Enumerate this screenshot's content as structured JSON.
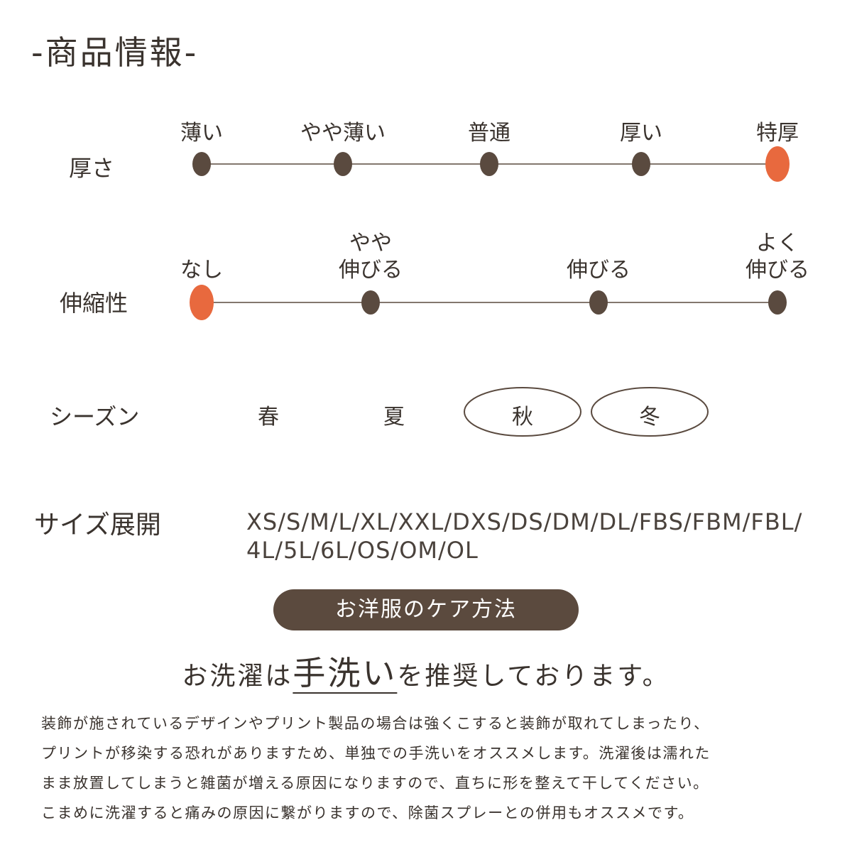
{
  "title": "-商品情報-",
  "thickness": {
    "label": "厚さ",
    "options": [
      "薄い",
      "やや薄い",
      "普通",
      "厚い",
      "特厚"
    ],
    "selected": [
      4
    ]
  },
  "stretch": {
    "label": "伸縮性",
    "options": [
      [
        "なし"
      ],
      [
        "やや",
        "伸びる"
      ],
      [
        "伸びる"
      ],
      [
        "よく",
        "伸びる"
      ]
    ],
    "selected": [
      0
    ]
  },
  "season": {
    "label": "シーズン",
    "options": [
      "春",
      "夏",
      "秋",
      "冬"
    ],
    "selected": [
      2,
      3
    ]
  },
  "sizes": {
    "label": "サイズ展開",
    "lines": [
      "XS/S/M/L/XL/XXL/DXS/DS/DM/DL/FBS/FBM/FBL/",
      "4L/5L/6L/OS/OM/OL"
    ]
  },
  "care": {
    "button": "お洋服のケア方法",
    "headline": [
      "お洗濯は",
      "手洗い",
      "を推奨しております。"
    ],
    "paragraph": [
      "装飾が施されているデザインやプリント製品の場合は強くこすると装飾が取れてしまったり、",
      "プリントが移染する恐れがありますため、単独での手洗いをオススメします。洗濯後は濡れた",
      "まま放置してしまうと雑菌が増える原因になりますので、直ちに形を整えて干してください。",
      "こまめに洗濯すると痛みの原因に繋がりますので、除菌スプレーとの併用もオススメです。"
    ]
  }
}
